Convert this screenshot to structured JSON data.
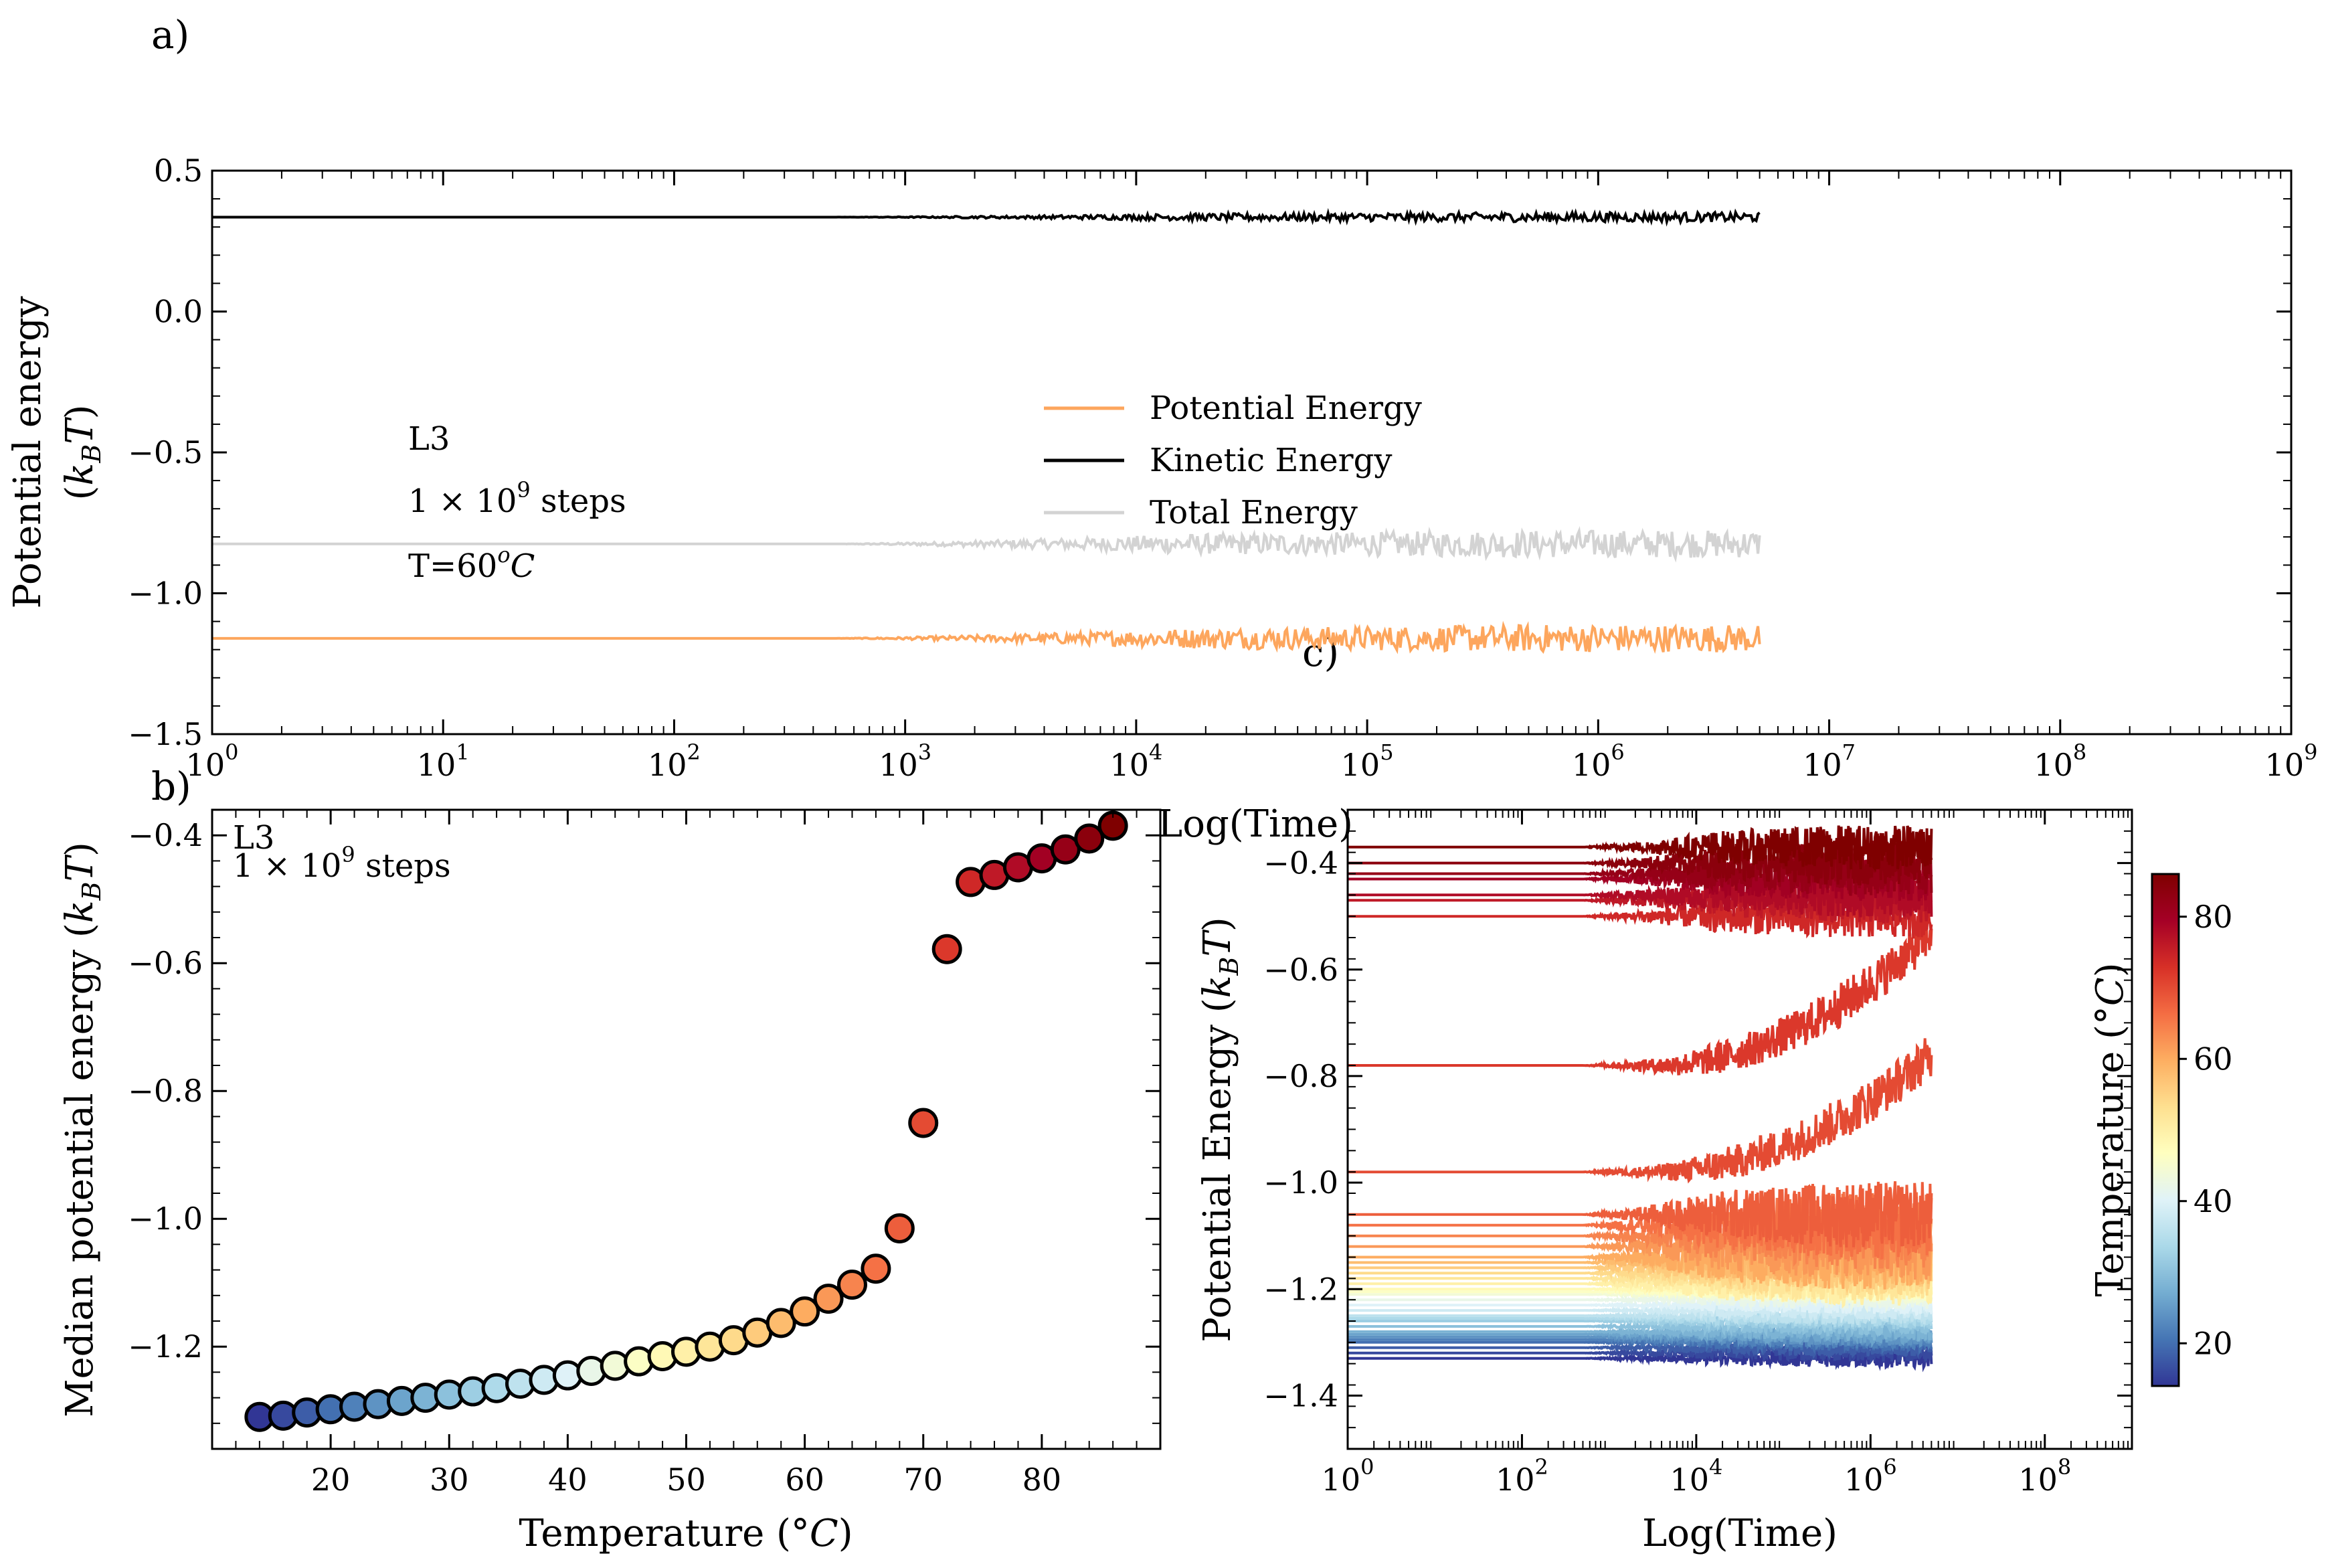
{
  "colors": {
    "potential": "#fda65d",
    "kinetic": "#000000",
    "total": "#d3d3d3",
    "colormap": [
      "#313695",
      "#4575b4",
      "#74add1",
      "#abd9e9",
      "#e0f3f8",
      "#ffffbf",
      "#fee090",
      "#fdae61",
      "#f46d43",
      "#d73027",
      "#a50026",
      "#7f0000"
    ]
  },
  "panels": {
    "a": "a)",
    "b": "b)",
    "c": "c)"
  },
  "chart_data": [
    {
      "id": "a",
      "type": "line",
      "xscale": "log",
      "xlabel": "Log(Time)",
      "ylabel_line1": "Potential energy",
      "ylabel_line2": "(k_B T)",
      "xlim": [
        1,
        1000000000
      ],
      "ylim": [
        -1.5,
        0.5
      ],
      "xticks": [
        1,
        10,
        100,
        1000,
        10000,
        100000,
        1000000,
        10000000,
        100000000,
        1000000000
      ],
      "xtick_labels": [
        {
          "base": "10",
          "exp": "0"
        },
        {
          "base": "10",
          "exp": "1"
        },
        {
          "base": "10",
          "exp": "2"
        },
        {
          "base": "10",
          "exp": "3"
        },
        {
          "base": "10",
          "exp": "4"
        },
        {
          "base": "10",
          "exp": "5"
        },
        {
          "base": "10",
          "exp": "6"
        },
        {
          "base": "10",
          "exp": "7"
        },
        {
          "base": "10",
          "exp": "8"
        },
        {
          "base": "10",
          "exp": "9"
        }
      ],
      "yticks": [
        0.5,
        0.0,
        -0.5,
        -1.0,
        -1.5
      ],
      "ytick_labels": [
        "0.5",
        "0.0",
        "−0.5",
        "−1.0",
        "−1.5"
      ],
      "legend_location": "center",
      "series": [
        {
          "name": "Potential Energy",
          "color": "#fda65d",
          "baseline": -1.16,
          "noise": 0.035,
          "x_end": 5000000
        },
        {
          "name": "Kinetic Energy",
          "color": "#000000",
          "baseline": 0.335,
          "noise": 0.012,
          "x_end": 5000000
        },
        {
          "name": "Total Energy",
          "color": "#d3d3d3",
          "baseline": -0.825,
          "noise": 0.035,
          "x_end": 5000000
        }
      ],
      "annotation": {
        "line1": "L3",
        "line2": "1 × 10",
        "line2_exp": "9",
        "line2_tail": " steps",
        "line3": "T=60",
        "line3_exp": "o",
        "line3_tail": "C"
      }
    },
    {
      "id": "b",
      "type": "scatter",
      "xlabel": "Temperature (°C)",
      "ylabel": "Median potential energy (k_B T)",
      "xlim": [
        10,
        90
      ],
      "ylim": [
        -1.36,
        -0.36
      ],
      "xticks": [
        20,
        30,
        40,
        50,
        60,
        70,
        80
      ],
      "yticks": [
        -0.4,
        -0.6,
        -0.8,
        -1.0,
        -1.2
      ],
      "ytick_labels": [
        "−0.4",
        "−0.6",
        "−0.8",
        "−1.0",
        "−1.2"
      ],
      "x": [
        14,
        16,
        18,
        20,
        22,
        24,
        26,
        28,
        30,
        32,
        34,
        36,
        38,
        40,
        42,
        44,
        46,
        48,
        50,
        52,
        54,
        56,
        58,
        60,
        62,
        64,
        66,
        68,
        70,
        72,
        74,
        76,
        78,
        80,
        82,
        84,
        86
      ],
      "y": [
        -1.31,
        -1.308,
        -1.303,
        -1.298,
        -1.294,
        -1.29,
        -1.285,
        -1.28,
        -1.275,
        -1.27,
        -1.265,
        -1.258,
        -1.252,
        -1.245,
        -1.238,
        -1.23,
        -1.223,
        -1.215,
        -1.208,
        -1.2,
        -1.19,
        -1.178,
        -1.163,
        -1.145,
        -1.125,
        -1.103,
        -1.078,
        -1.015,
        -0.85,
        -0.578,
        -0.473,
        -0.462,
        -0.45,
        -0.436,
        -0.422,
        -0.405,
        -0.385
      ],
      "annotation": {
        "line1": "L3",
        "line2": "1 × 10",
        "line2_exp": "9",
        "line2_tail": " steps"
      }
    },
    {
      "id": "c",
      "type": "line",
      "xscale": "log",
      "xlabel": "Log(Time)",
      "ylabel": "Potential Energy (k_B T)",
      "xlim": [
        1,
        1000000000
      ],
      "ylim": [
        -1.5,
        -0.3
      ],
      "xticks": [
        1,
        100,
        10000,
        1000000,
        100000000
      ],
      "xtick_labels": [
        {
          "base": "10",
          "exp": "0"
        },
        {
          "base": "10",
          "exp": "2"
        },
        {
          "base": "10",
          "exp": "4"
        },
        {
          "base": "10",
          "exp": "6"
        },
        {
          "base": "10",
          "exp": "8"
        }
      ],
      "yticks": [
        -0.4,
        -0.6,
        -0.8,
        -1.0,
        -1.2,
        -1.4
      ],
      "ytick_labels": [
        "−0.4",
        "−0.6",
        "−0.8",
        "−1.0",
        "−1.2",
        "−1.4"
      ],
      "colorbar": {
        "label": "Temperature (°C)",
        "range": [
          14,
          86
        ],
        "ticks": [
          20,
          40,
          60,
          80
        ]
      },
      "series_temperatures": [
        14,
        16,
        18,
        20,
        22,
        24,
        26,
        28,
        30,
        32,
        34,
        36,
        38,
        40,
        42,
        44,
        46,
        48,
        50,
        52,
        54,
        56,
        58,
        60,
        62,
        64,
        66,
        68,
        70,
        72,
        74,
        76,
        78,
        80,
        82,
        84,
        86
      ],
      "series_initial": [
        -1.33,
        -1.32,
        -1.31,
        -1.3,
        -1.295,
        -1.29,
        -1.285,
        -1.28,
        -1.27,
        -1.26,
        -1.255,
        -1.25,
        -1.24,
        -1.23,
        -1.22,
        -1.21,
        -1.205,
        -1.2,
        -1.19,
        -1.18,
        -1.17,
        -1.16,
        -1.15,
        -1.14,
        -1.12,
        -1.1,
        -1.08,
        -1.06,
        -0.98,
        -0.78,
        -0.5,
        -0.47,
        -0.46,
        -0.43,
        -0.42,
        -0.4,
        -0.37
      ],
      "series_final": [
        -1.32,
        -1.31,
        -1.3,
        -1.29,
        -1.28,
        -1.27,
        -1.26,
        -1.25,
        -1.24,
        -1.23,
        -1.22,
        -1.21,
        -1.2,
        -1.19,
        -1.18,
        -1.17,
        -1.16,
        -1.15,
        -1.14,
        -1.13,
        -1.12,
        -1.1,
        -1.08,
        -1.06,
        -1.04,
        -1.02,
        -1.0,
        -0.98,
        -0.8,
        -0.55,
        -0.47,
        -0.46,
        -0.44,
        -0.43,
        -0.41,
        -0.4,
        -0.38
      ],
      "x_end": 5000000
    }
  ]
}
